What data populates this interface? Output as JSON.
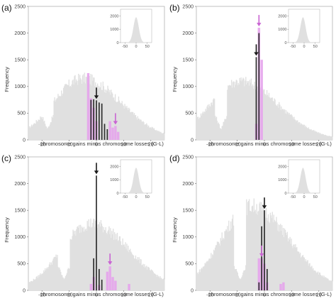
{
  "colors": {
    "background_hist": "#e0e0e0",
    "observed": "#2e2e2e",
    "simulated": "#e6a3ec",
    "simulated_arrow": "#c964d2",
    "observed_arrow": "#1a1a1a",
    "inset_bg": "#ffffff"
  },
  "chart_data": [
    {
      "panel": "(a)",
      "type": "bar",
      "xlabel": "chromosome gains minus chromosome losses (G-L)",
      "ylabel": "Frequency",
      "xlim": [
        -25,
        25
      ],
      "ylim": [
        0,
        2500
      ],
      "xticks": [
        -20,
        -10,
        0,
        10,
        20
      ],
      "yticks": [
        0,
        500,
        1000,
        1500,
        2000,
        2500
      ],
      "background": {
        "peak_x": -5,
        "peak_y": 1150,
        "dip_x": -18,
        "dip_y": 200
      },
      "observed": {
        "x": [
          -2,
          -1,
          0,
          1,
          2,
          3,
          4
        ],
        "values": [
          750,
          760,
          740,
          700,
          680,
          300,
          200
        ]
      },
      "simulated": {
        "x": [
          -3,
          -2,
          -1,
          0,
          5,
          6,
          7,
          8
        ],
        "values": [
          1250,
          780,
          600,
          350,
          350,
          230,
          260,
          150
        ]
      },
      "arrows": {
        "observed_x": 0,
        "simulated_x": 7,
        "background_x": -18
      },
      "inset": {
        "xticks": [
          -50,
          0,
          50
        ],
        "yticks": [
          0,
          1000,
          2000
        ],
        "peak_x": 0,
        "peak_y": 1900
      }
    },
    {
      "panel": "(b)",
      "type": "bar",
      "xlabel": "chromosome gains minus chromosome losses (G-L)",
      "ylabel": "Frequency",
      "xlim": [
        -25,
        25
      ],
      "ylim": [
        0,
        2500
      ],
      "xticks": [
        -20,
        -10,
        0,
        10,
        20
      ],
      "yticks": [
        0,
        500,
        1000,
        1500,
        2000,
        2500
      ],
      "background": {
        "peak_x": -9,
        "peak_y": 1100,
        "dip_x": -16,
        "dip_y": 200
      },
      "observed": {
        "x": [
          -3,
          -2
        ],
        "values": [
          1550,
          2000
        ]
      },
      "simulated": {
        "x": [
          -3,
          -2,
          -1
        ],
        "values": [
          300,
          2100,
          1500
        ]
      },
      "arrows": {
        "observed_x": -3,
        "simulated_x": -2,
        "background_x": -16
      },
      "inset": {
        "xticks": [
          -50,
          0,
          50
        ],
        "yticks": [
          0,
          1000,
          2000
        ],
        "peak_x": -5,
        "peak_y": 1900
      }
    },
    {
      "panel": "(c)",
      "type": "bar",
      "xlabel": "chromosome gains minus chromosome losses (G-L)",
      "ylabel": "Frequency",
      "xlim": [
        -25,
        25
      ],
      "ylim": [
        0,
        2500
      ],
      "xticks": [
        -20,
        -10,
        0,
        10,
        20
      ],
      "yticks": [
        0,
        500,
        1000,
        1500,
        2000,
        2500
      ],
      "background": {
        "peak_x": -2,
        "peak_y": 1250,
        "dip_x": -12,
        "dip_y": 200
      },
      "observed": {
        "x": [
          -1,
          0,
          1,
          2
        ],
        "values": [
          600,
          2150,
          400,
          200
        ]
      },
      "simulated": {
        "x": [
          -2,
          -1,
          1,
          4,
          5,
          6,
          7,
          12
        ],
        "values": [
          120,
          250,
          100,
          350,
          450,
          250,
          180,
          120
        ]
      },
      "arrows": {
        "observed_x": 0,
        "simulated_x": 5,
        "background_x": -12
      },
      "inset": {
        "xticks": [
          -50,
          0,
          50
        ],
        "yticks": [
          0,
          1000,
          2000
        ],
        "peak_x": 0,
        "peak_y": 1900
      }
    },
    {
      "panel": "(d)",
      "type": "bar",
      "xlabel": "chromosome gains minus chromosome losses (G-L)",
      "ylabel": "Frequency",
      "xlim": [
        -25,
        25
      ],
      "ylim": [
        0,
        2500
      ],
      "xticks": [
        -20,
        -10,
        0,
        10,
        20
      ],
      "yticks": [
        0,
        500,
        1000,
        1500,
        2000,
        2500
      ],
      "background": {
        "peak_x": -5,
        "peak_y": 1580,
        "dip_x": -9,
        "dip_y": 200
      },
      "observed": {
        "x": [
          -2,
          -1,
          0,
          1
        ],
        "values": [
          150,
          1200,
          1500,
          400
        ]
      },
      "simulated": {
        "x": [
          -2,
          -1,
          0,
          1,
          6,
          7
        ],
        "values": [
          600,
          600,
          500,
          150,
          120,
          150
        ]
      },
      "arrows": {
        "observed_x": 0,
        "simulated_x": -1,
        "background_x": -9
      },
      "inset": {
        "xticks": [
          -50,
          0,
          50
        ],
        "yticks": [
          0,
          1000,
          2000
        ],
        "peak_x": -5,
        "peak_y": 1900
      }
    }
  ]
}
